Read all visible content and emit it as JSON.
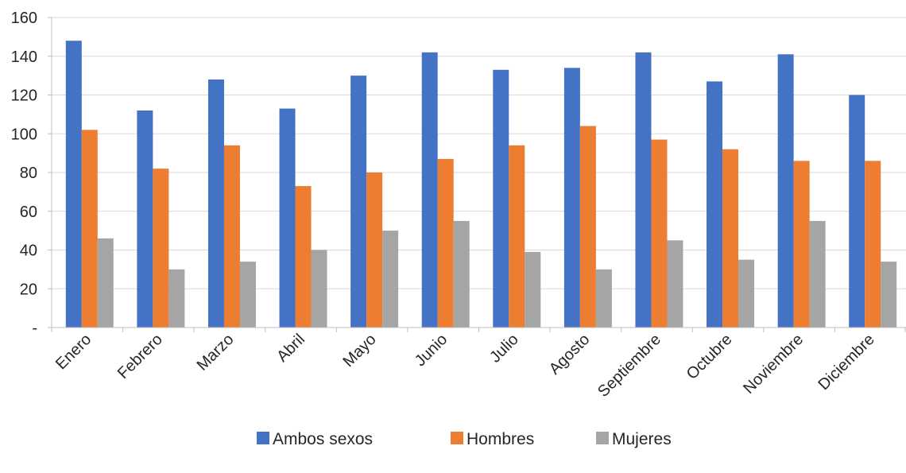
{
  "chart_data": {
    "type": "bar",
    "categories": [
      "Enero",
      "Febrero",
      "Marzo",
      "Abril",
      "Mayo",
      "Junio",
      "Julio",
      "Agosto",
      "Septiembre",
      "Octubre",
      "Noviembre",
      "Diciembre"
    ],
    "series": [
      {
        "name": "Ambos sexos",
        "color": "#4472c4",
        "values": [
          148,
          112,
          128,
          113,
          130,
          142,
          133,
          134,
          142,
          127,
          141,
          120
        ]
      },
      {
        "name": "Hombres",
        "color": "#ed7d31",
        "values": [
          102,
          82,
          94,
          73,
          80,
          87,
          94,
          104,
          97,
          92,
          86,
          86
        ]
      },
      {
        "name": "Mujeres",
        "color": "#a5a5a5",
        "values": [
          46,
          30,
          34,
          40,
          50,
          55,
          39,
          30,
          45,
          35,
          55,
          34
        ]
      }
    ],
    "ylim": [
      0,
      160
    ],
    "yticks": [
      0,
      20,
      40,
      60,
      80,
      100,
      120,
      140,
      160
    ],
    "ytick_labels": [
      "-",
      "20",
      "40",
      "60",
      "80",
      "100",
      "120",
      "140",
      "160"
    ],
    "grid": true,
    "legend_position": "bottom",
    "title": "",
    "xlabel": "",
    "ylabel": ""
  }
}
